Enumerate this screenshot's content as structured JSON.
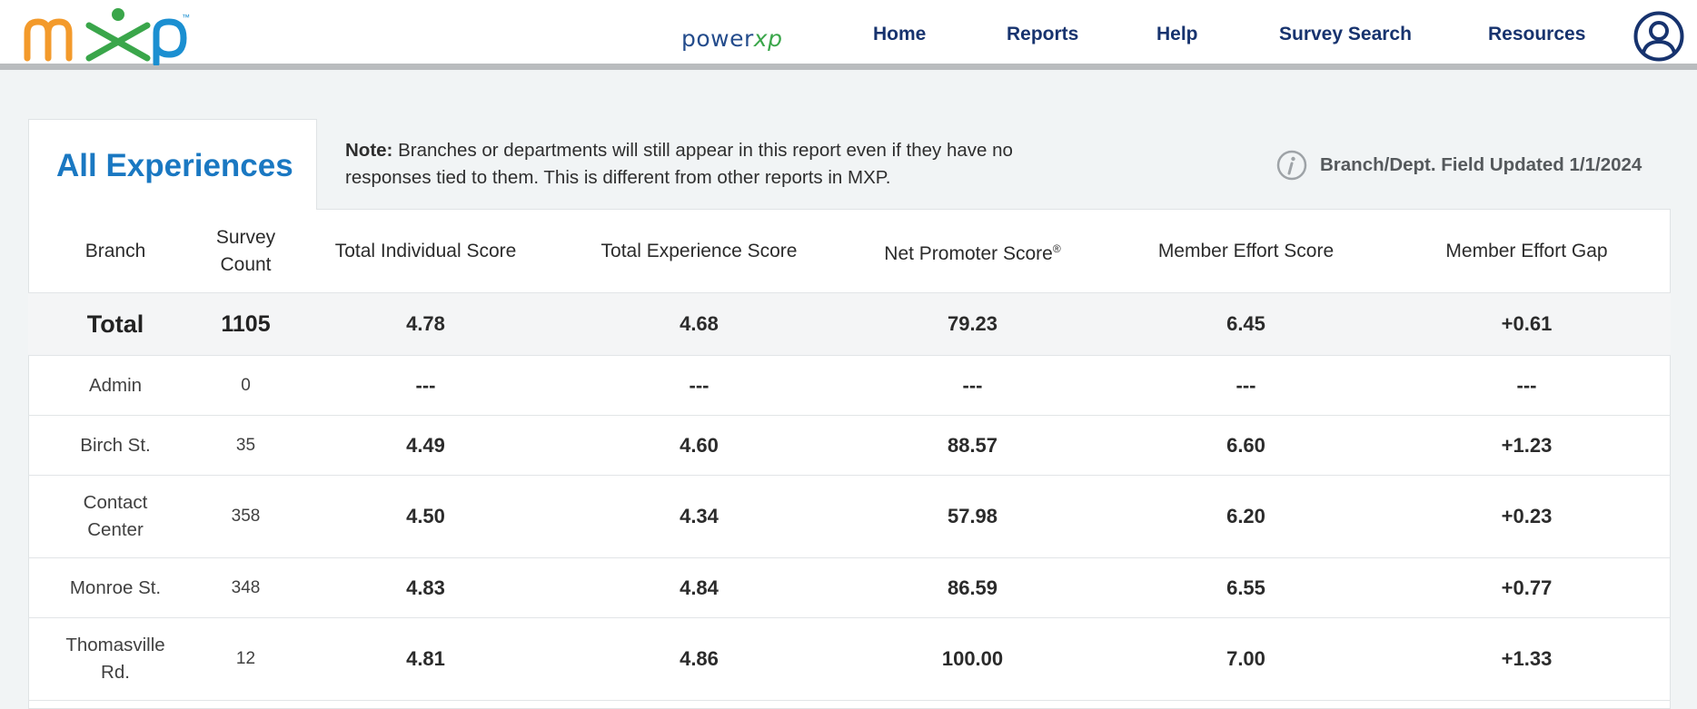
{
  "header": {
    "logo_text": "mxp",
    "trademark": "™",
    "product": {
      "part1": "power",
      "part2": "xp"
    },
    "nav": [
      "Home",
      "Reports",
      "Help",
      "Survey Search",
      "Resources"
    ]
  },
  "panel": {
    "tab_title": "All Experiences",
    "note_label": "Note:",
    "note_text": " Branches or departments will still appear in this report even if they have no responses tied to them. This is different from other reports in MXP.",
    "updated_text": "Branch/Dept. Field Updated 1/1/2024"
  },
  "table": {
    "headers": {
      "branch": "Branch",
      "survey_count": "Survey Count",
      "total_individual": "Total Individual Score",
      "total_experience": "Total Experience Score",
      "nps": "Net Promoter Score",
      "nps_mark": "®",
      "effort_score": "Member Effort Score",
      "effort_gap": "Member Effort Gap"
    },
    "total": {
      "name": "Total",
      "count": "1105",
      "tis": "4.78",
      "tes": "4.68",
      "nps": "79.23",
      "mes": "6.45",
      "meg": "+0.61"
    },
    "rows": [
      {
        "name": "Admin",
        "count": "0",
        "tis": "---",
        "tes": "---",
        "nps": "---",
        "mes": "---",
        "meg": "---"
      },
      {
        "name": "Birch St.",
        "count": "35",
        "tis": "4.49",
        "tes": "4.60",
        "nps": "88.57",
        "mes": "6.60",
        "meg": "+1.23"
      },
      {
        "name": "Contact Center",
        "count": "358",
        "tis": "4.50",
        "tes": "4.34",
        "nps": "57.98",
        "mes": "6.20",
        "meg": "+0.23"
      },
      {
        "name": "Monroe St.",
        "count": "348",
        "tis": "4.83",
        "tes": "4.84",
        "nps": "86.59",
        "mes": "6.55",
        "meg": "+0.77"
      },
      {
        "name": "Thomasville Rd.",
        "count": "12",
        "tis": "4.81",
        "tes": "4.86",
        "nps": "100.00",
        "mes": "7.00",
        "meg": "+1.33"
      }
    ]
  },
  "colors": {
    "logo_orange": "#f39a2b",
    "logo_green": "#3aa64a",
    "logo_blue": "#1b8fd1",
    "nav_text": "#17336e",
    "tab_title": "#1a78c2"
  }
}
